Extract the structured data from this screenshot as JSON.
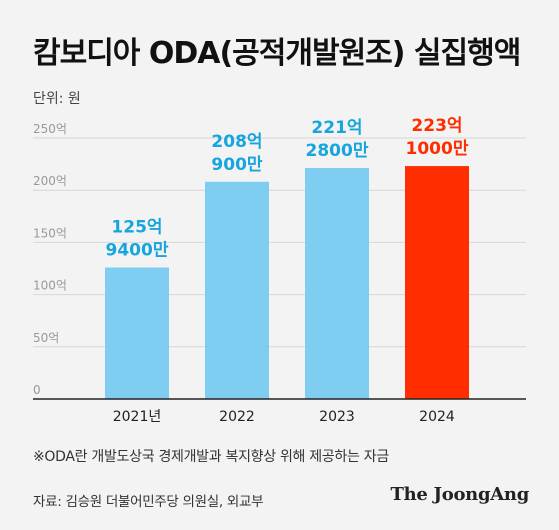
{
  "title": "캄보디아 ODA(공적개발원조) 실집행액",
  "unit_label": "단위: 원",
  "footnote": "※ODA란 개발도상국 경제개발과 복지향상 위해 제공하는 자금",
  "source": "자료: 김승원 더불어민주당 의원실, 외교부",
  "brand": "The JoongAng",
  "colors": {
    "bar": "#7fcdf0",
    "highlight": "#ff2d00",
    "label": "#16a5dc",
    "axis": "#222222",
    "grid": "#d6d6d6",
    "tick": "#999999"
  },
  "chart_data": {
    "type": "bar",
    "categories": [
      "2021년",
      "2022",
      "2023",
      "2024"
    ],
    "values": [
      125.94,
      208.09,
      221.28,
      223.1
    ],
    "data_labels": [
      [
        "125억",
        "9400만"
      ],
      [
        "208억",
        "900만"
      ],
      [
        "221억",
        "2800만"
      ],
      [
        "223억",
        "1000만"
      ]
    ],
    "highlight_index": 3,
    "y_ticks": [
      "0",
      "50억",
      "100억",
      "150억",
      "200억",
      "250억"
    ],
    "ylim": [
      0,
      250
    ],
    "grid": true
  }
}
